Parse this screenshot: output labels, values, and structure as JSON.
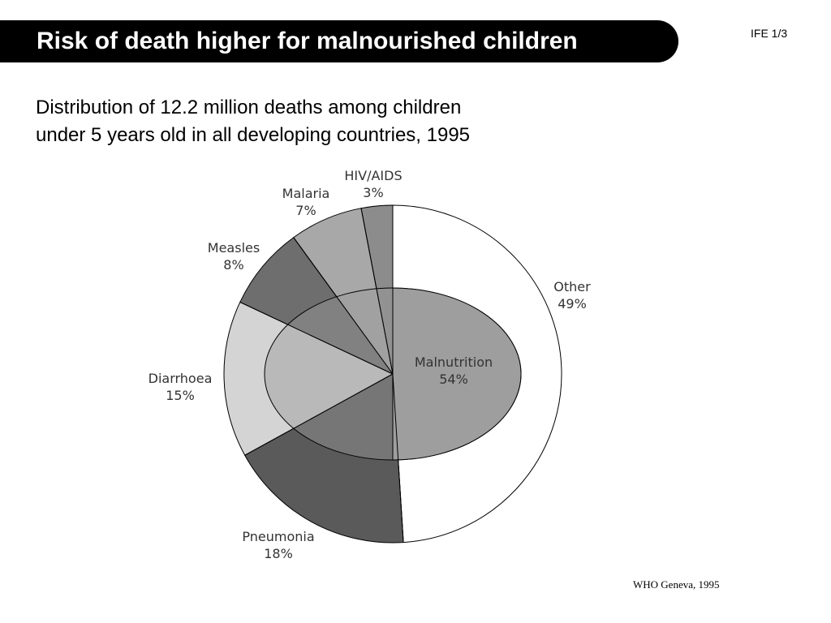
{
  "slide": {
    "title": "Risk of death higher for malnourished children",
    "slide_id": "IFE 1/3",
    "subtitle_line1": "Distribution of 12.2 million deaths among children",
    "subtitle_line2": "under 5 years old in all developing countries, 1995",
    "source": "WHO Geneva, 1995"
  },
  "chart_data": {
    "type": "pie",
    "title": "Distribution of 12.2 million deaths among children under 5 years old in all developing countries, 1995",
    "unit": "%",
    "slices": [
      {
        "label": "Other",
        "value": 49,
        "value_label": "49%",
        "color": "#ffffff"
      },
      {
        "label": "Pneumonia",
        "value": 18,
        "value_label": "18%",
        "color": "#5a5a5a"
      },
      {
        "label": "Diarrhoea",
        "value": 15,
        "value_label": "15%",
        "color": "#d4d4d4"
      },
      {
        "label": "Measles",
        "value": 8,
        "value_label": "8%",
        "color": "#6e6e6e"
      },
      {
        "label": "Malaria",
        "value": 7,
        "value_label": "7%",
        "color": "#a8a8a8"
      },
      {
        "label": "HIV/AIDS",
        "value": 3,
        "value_label": "3%",
        "color": "#8c8c8c"
      }
    ],
    "overlay": {
      "label": "Malnutrition",
      "value": 54,
      "value_label": "54%",
      "color": "#9a9a9a"
    }
  }
}
